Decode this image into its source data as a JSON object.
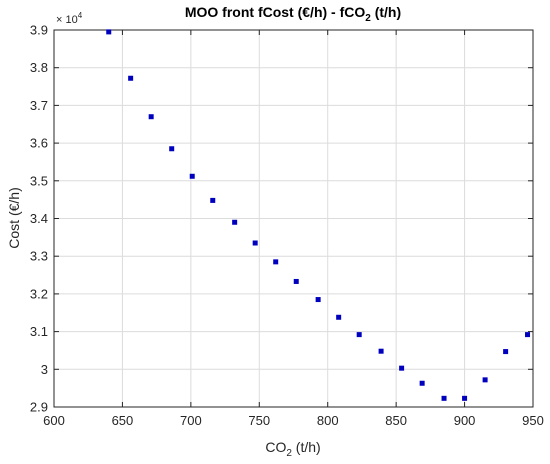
{
  "chart_data": {
    "type": "scatter",
    "title": {
      "before": "MOO front fCost (€/h) - fCO",
      "sub": "2",
      "after": " (t/h)"
    },
    "xlabel": {
      "before": "CO",
      "sub": "2",
      "after": " (t/h)"
    },
    "ylabel": "Cost (€/h)",
    "y_multiplier": {
      "base": "× 10",
      "exponent": "4"
    },
    "xlim": [
      600,
      950
    ],
    "ylim": [
      2.9,
      3.9
    ],
    "x_ticks": [
      "600",
      "650",
      "700",
      "750",
      "800",
      "850",
      "900",
      "950"
    ],
    "y_ticks": [
      "2.9",
      "3",
      "3.1",
      "3.2",
      "3.3",
      "3.4",
      "3.5",
      "3.6",
      "3.7",
      "3.8",
      "3.9"
    ],
    "grid": true,
    "marker_color": "#0000bf",
    "x": [
      640,
      656,
      671,
      686,
      701,
      716,
      732,
      747,
      762,
      777,
      793,
      808,
      823,
      839,
      854,
      869,
      885,
      900,
      915,
      930,
      946
    ],
    "y": [
      3.895,
      3.772,
      3.67,
      3.585,
      3.512,
      3.448,
      3.39,
      3.335,
      3.285,
      3.233,
      3.185,
      3.138,
      3.092,
      3.048,
      3.003,
      2.963,
      2.923,
      2.923,
      2.972,
      3.047,
      3.092
    ]
  }
}
